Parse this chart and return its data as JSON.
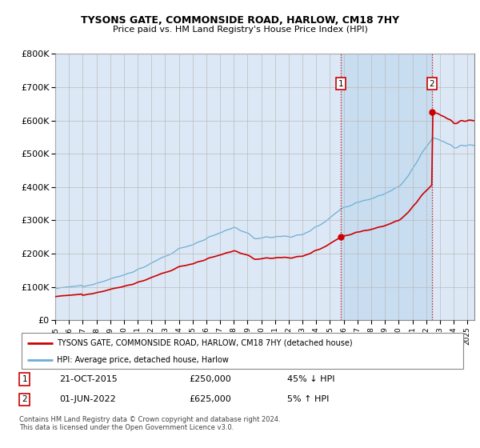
{
  "title": "TYSONS GATE, COMMONSIDE ROAD, HARLOW, CM18 7HY",
  "subtitle": "Price paid vs. HM Land Registry's House Price Index (HPI)",
  "hpi_color": "#6baed6",
  "price_color": "#cc0000",
  "marker1_date": "21-OCT-2015",
  "marker1_price": 250000,
  "marker1_label": "45% ↓ HPI",
  "marker2_date": "01-JUN-2022",
  "marker2_price": 625000,
  "marker2_label": "5% ↑ HPI",
  "legend_line1": "TYSONS GATE, COMMONSIDE ROAD, HARLOW, CM18 7HY (detached house)",
  "legend_line2": "HPI: Average price, detached house, Harlow",
  "footer": "Contains HM Land Registry data © Crown copyright and database right 2024.\nThis data is licensed under the Open Government Licence v3.0.",
  "ylim": [
    0,
    800000
  ],
  "xlim_start": 1995.0,
  "xlim_end": 2025.5,
  "marker1_x": 2015.8,
  "marker2_x": 2022.42,
  "background_color": "#dce8f5",
  "highlight_color": "#c8ddf0"
}
